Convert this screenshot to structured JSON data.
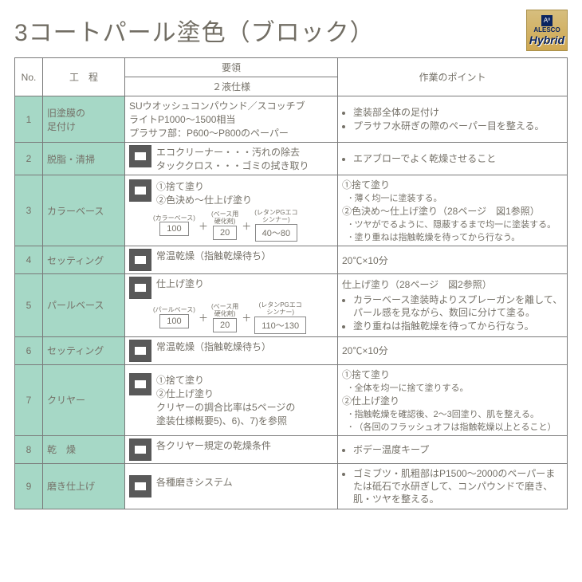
{
  "title": "3コートパール塗色（ブロック）",
  "badge": {
    "top": "Aº",
    "line1": "ALESCO",
    "line2": "Hybrid"
  },
  "headers": {
    "no": "No.",
    "process": "工　程",
    "youryou": "要領",
    "spec": "２液仕様",
    "points": "作業のポイント"
  },
  "rows": [
    {
      "no": "1",
      "proc": "旧塗膜の\n足付け",
      "spec_lines": [
        "SUウオッシュコンパウンド／スコッチブ",
        "ライトP1000～1500相当",
        "プラサフ部：P600～P800のペーパー"
      ],
      "points": [
        "塗装部全体の足付け",
        "プラサフ水研ぎの際のペーパー目を整える。"
      ]
    },
    {
      "no": "2",
      "proc": "脱脂・清掃",
      "icon": true,
      "spec_lines": [
        "エコクリーナー・・・汚れの除去",
        "タッククロス・・・ゴミの拭き取り"
      ],
      "points": [
        "エアブローでよく乾燥させること"
      ]
    },
    {
      "no": "3",
      "proc": "カラーベース",
      "icon": true,
      "spec_lines": [
        "①捨て塗り",
        "②色決め～仕上げ塗り"
      ],
      "ratio": {
        "labels": [
          "(カラーベース)",
          "(ベース用\n硬化剤)",
          "(レタンPGエコ\nシンナー)"
        ],
        "boxes": [
          "100",
          "20",
          "40～80"
        ]
      },
      "points": [
        "①捨て塗り"
      ],
      "subs1": [
        "薄く均一に塗装する。"
      ],
      "points2": [
        "②色決め～仕上げ塗り（28ページ　図1参照）"
      ],
      "subs2": [
        "ツヤがでるように、隠蔽するまで均一に塗装する。",
        "塗り重ねは指触乾燥を待ってから行なう。"
      ]
    },
    {
      "no": "4",
      "proc": "セッティング",
      "icon": true,
      "spec_lines": [
        "常温乾燥（指触乾燥待ち）"
      ],
      "plain": "20℃×10分"
    },
    {
      "no": "5",
      "proc": "パールベース",
      "icon": true,
      "spec_lines": [
        "仕上げ塗り"
      ],
      "ratio": {
        "labels": [
          "(パールベース)",
          "(ベース用\n硬化剤)",
          "(レタンPGエコ\nシンナー)"
        ],
        "boxes": [
          "100",
          "20",
          "110～130"
        ]
      },
      "plain_top": "仕上げ塗り（28ページ　図2参照）",
      "points": [
        "カラーベース塗装時よりスプレーガンを離して、パール感を見ながら、数回に分けて塗る。",
        "塗り重ねは指触乾燥を待ってから行なう。"
      ]
    },
    {
      "no": "6",
      "proc": "セッティング",
      "icon": true,
      "spec_lines": [
        "常温乾燥（指触乾燥待ち）"
      ],
      "plain": "20℃×10分"
    },
    {
      "no": "7",
      "proc": "クリヤー",
      "icon": true,
      "spec_lines": [
        "①捨て塗り",
        "②仕上げ塗り",
        "クリヤーの調合比率は5ページの",
        "塗装仕様概要5)、6)、7)を参照"
      ],
      "points": [
        "①捨て塗り"
      ],
      "subs1": [
        "全体を均一に捨て塗りする。"
      ],
      "points2": [
        "②仕上げ塗り"
      ],
      "subs2": [
        "指触乾燥を確認後、2～3回塗り、肌を整える。",
        "（各回のフラッシュオフは指触乾燥以上とること）"
      ]
    },
    {
      "no": "8",
      "proc": "乾　燥",
      "icon": true,
      "spec_lines": [
        "各クリヤー規定の乾燥条件"
      ],
      "points": [
        "ボデー温度キープ"
      ]
    },
    {
      "no": "9",
      "proc": "磨き仕上げ",
      "icon": true,
      "spec_lines": [
        "各種磨きシステム"
      ],
      "points": [
        "ゴミブツ・肌粗部はP1500～2000のペーパーまたは砥石で水研ぎして、コンパウンドで磨き、肌・ツヤを整える。"
      ]
    }
  ]
}
